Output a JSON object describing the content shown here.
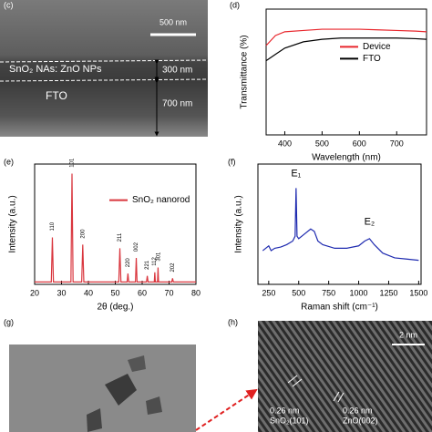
{
  "panels": {
    "c": {
      "label": "(c)",
      "scale_bar": "500 nm",
      "layer_label": "SnO₂ NAs: ZnO NPs",
      "layer_thickness": "300 nm",
      "substrate_label": "FTO",
      "substrate_thickness": "700 nm"
    },
    "g": {
      "label": "(g)"
    },
    "h": {
      "label": "(h)",
      "scale_bar": "2 nm",
      "left_spacing": "0.26 nm",
      "left_plane": "SnO₂(101)",
      "right_spacing": "0.26 nm",
      "right_plane": "ZnO(002)"
    }
  },
  "chart_data": [
    {
      "type": "line",
      "panel_label": "(d)",
      "x_label": "Wavelength (nm)",
      "y_label": "Transmittance (%)",
      "x": [
        350,
        375,
        400,
        450,
        500,
        550,
        600,
        650,
        700,
        750,
        780
      ],
      "series": [
        {
          "name": "Device",
          "color": "#e8262c",
          "values": [
            71,
            79,
            82,
            83,
            84,
            84,
            84,
            83.5,
            83,
            82.5,
            82
          ]
        },
        {
          "name": "FTO",
          "color": "#000000",
          "values": [
            59,
            64,
            69,
            74,
            76,
            77,
            77,
            77,
            77,
            76.5,
            76
          ]
        }
      ],
      "xlim": [
        350,
        780
      ],
      "xticks": [
        400,
        500,
        600,
        700
      ],
      "ylim": [
        0,
        100
      ],
      "legend": "upper right"
    },
    {
      "type": "line",
      "panel_label": "(e)",
      "x_label": "2θ (deg.)",
      "y_label": "Intensity (a.u.)",
      "x": [
        20,
        26.2,
        26.6,
        27.0,
        33.5,
        33.9,
        34.3,
        37.5,
        37.9,
        38.3,
        51.3,
        51.7,
        52.1,
        54.4,
        54.7,
        55.0,
        57.5,
        57.8,
        58.1,
        61.6,
        61.9,
        62.2,
        64.5,
        64.7,
        64.9,
        65.7,
        65.9,
        66.1,
        71.0,
        71.3,
        71.6,
        80
      ],
      "series": [
        {
          "name": "SnO₂ nanorod",
          "color": "#d9363e",
          "values": [
            2,
            2,
            39,
            2,
            2,
            92,
            2,
            2,
            33,
            2,
            2,
            30,
            2,
            2,
            9,
            2,
            2,
            22,
            2,
            2,
            7,
            2,
            2,
            10,
            2,
            2,
            14,
            2,
            2,
            5,
            2,
            2
          ]
        }
      ],
      "xlim": [
        20,
        80
      ],
      "xticks": [
        20,
        30,
        40,
        50,
        60,
        70,
        80
      ],
      "ylim": [
        0,
        100
      ],
      "legend": "upper right",
      "annotation_orientation": "vertical",
      "annotations": [
        {
          "text": "110",
          "x": 26.6,
          "y": 48
        },
        {
          "text": "101",
          "x": 33.9,
          "y": 101
        },
        {
          "text": "200",
          "x": 37.9,
          "y": 42
        },
        {
          "text": "211",
          "x": 51.7,
          "y": 39
        },
        {
          "text": "220",
          "x": 54.7,
          "y": 18
        },
        {
          "text": "002",
          "x": 57.8,
          "y": 31
        },
        {
          "text": "221",
          "x": 61.9,
          "y": 16
        },
        {
          "text": "112",
          "x": 64.5,
          "y": 19
        },
        {
          "text": "301",
          "x": 66.1,
          "y": 23
        },
        {
          "text": "202",
          "x": 71.3,
          "y": 14
        }
      ]
    },
    {
      "type": "line",
      "panel_label": "(f)",
      "x_label": "Raman shift (cm⁻¹)",
      "y_label": "Intensity (a.u.)",
      "x": [
        200,
        250,
        270,
        300,
        350,
        400,
        450,
        470,
        478,
        486,
        500,
        550,
        600,
        630,
        660,
        700,
        800,
        900,
        1000,
        1050,
        1090,
        1130,
        1200,
        1300,
        1400,
        1500
      ],
      "series": [
        {
          "color": "#1f2bb0",
          "values": [
            28,
            32,
            28,
            30,
            31,
            33,
            36,
            40,
            80,
            40,
            38,
            42,
            46,
            44,
            36,
            33,
            30,
            30,
            32,
            36,
            38,
            33,
            26,
            22,
            21,
            20
          ]
        }
      ],
      "xlim": [
        160,
        1520
      ],
      "xticks": [
        250,
        500,
        750,
        1000,
        1250,
        1500
      ],
      "ylim": [
        0,
        100
      ],
      "annotation_orientation": "horizontal",
      "annotations": [
        {
          "text": "E₁",
          "x": 478,
          "y": 92
        },
        {
          "text": "E₂",
          "x": 1090,
          "y": 52
        }
      ]
    }
  ]
}
